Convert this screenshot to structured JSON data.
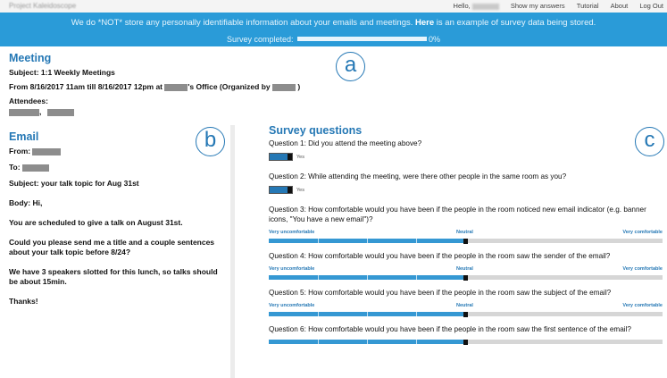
{
  "header": {
    "app_name": "Project Kaleidoscope",
    "greeting": "Hello,",
    "nav": [
      "Show my answers",
      "Tutorial",
      "About",
      "Log Out"
    ]
  },
  "banner": {
    "notice_prefix": "We do *NOT* store any personally identifiable information about your emails and meetings.",
    "notice_link": "Here",
    "notice_suffix": "is an example of survey data being stored.",
    "survey_completed_label": "Survey completed:",
    "survey_progress": "0%",
    "survey_progress_fraction": 0
  },
  "meeting": {
    "heading": "Meeting",
    "subject": "Subject: 1:1 Weekly Meetings",
    "time_prefix": "From 8/16/2017 11am till 8/16/2017 12pm at",
    "office_text": "'s Office (Organized by",
    "close_paren": ")",
    "attendees_label": "Attendees:",
    "attendee_separator": ","
  },
  "email": {
    "heading": "Email",
    "from_label": "From:",
    "to_label": "To:",
    "subject": "Subject: your talk topic for Aug 31st",
    "body_label": "Body: Hi,",
    "paragraphs": [
      "You are scheduled to give a talk on August 31st.",
      "Could you please send me a title and a couple sentences about your talk topic before 8/24?",
      "We have 3 speakers slotted for this lunch, so talks should be about 15min.",
      "Thanks!"
    ]
  },
  "survey": {
    "heading": "Survey questions",
    "scale_labels": {
      "low": "Very uncomfortable",
      "mid": "Neutral",
      "high": "Very comfortable"
    },
    "questions": [
      {
        "text": "Question 1:  Did you attend the meeting above?",
        "type": "toggle",
        "value_label": "Yes"
      },
      {
        "text": "Question 2:  While attending the meeting, were there other people in the same room as you?",
        "type": "toggle",
        "value_label": "Yes"
      },
      {
        "text": "Question 3:  How comfortable would you have been if the people in the room noticed new email indicator (e.g. banner icons, \"You have a new email\")?",
        "type": "slider",
        "value": 0.5
      },
      {
        "text": "Question 4:  How comfortable would you have been if the people in the room saw the sender of the email?",
        "type": "slider",
        "value": 0.5
      },
      {
        "text": "Question 5:  How comfortable would you have been if the people in the room saw the subject of the email?",
        "type": "slider",
        "value": 0.5
      },
      {
        "text": "Question 6:  How comfortable would you have been if the people in the room saw the first sentence of the email?",
        "type": "slider",
        "value": 0.5
      }
    ]
  },
  "annotations": [
    "a",
    "b",
    "c"
  ],
  "colors": {
    "accent": "#2578b5",
    "banner": "#2a9bd8",
    "slider_fill": "#3598d3"
  }
}
